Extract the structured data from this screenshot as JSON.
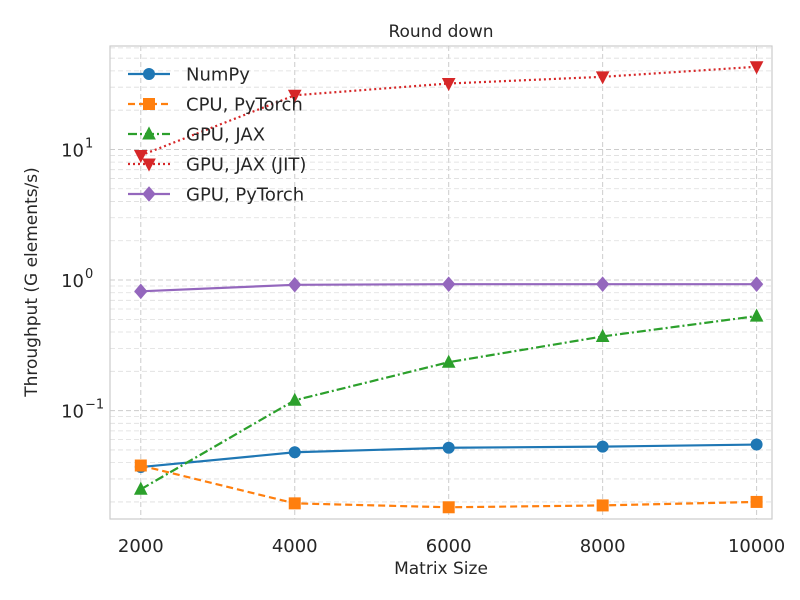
{
  "chart_data": {
    "type": "line",
    "title": "Round down",
    "xlabel": "Matrix Size",
    "ylabel": "Throughput (G elements/s)",
    "yscale": "log",
    "xlim": [
      1600,
      10200
    ],
    "ylim": [
      0.0148,
      62
    ],
    "x": [
      2000,
      4000,
      6000,
      8000,
      10000
    ],
    "x_ticks": [
      2000,
      4000,
      6000,
      8000,
      10000
    ],
    "x_tick_labels": [
      "2000",
      "4000",
      "6000",
      "8000",
      "10000"
    ],
    "y_ticks": [
      0.1,
      1,
      10
    ],
    "y_tick_labels": [
      {
        "base": "10",
        "exp": "−1"
      },
      {
        "base": "10",
        "exp": "0"
      },
      {
        "base": "10",
        "exp": "1"
      }
    ],
    "grid": true,
    "legend_position": "top-left",
    "series": [
      {
        "name": "NumPy",
        "values": [
          0.037,
          0.048,
          0.052,
          0.053,
          0.055
        ],
        "color": "#1f77b4",
        "marker": "circle",
        "linestyle": "solid"
      },
      {
        "name": "CPU, PyTorch",
        "values": [
          0.038,
          0.0195,
          0.0182,
          0.0188,
          0.02
        ],
        "color": "#ff7f0e",
        "marker": "square",
        "linestyle": "dashed"
      },
      {
        "name": "GPU, JAX",
        "values": [
          0.025,
          0.12,
          0.235,
          0.37,
          0.53
        ],
        "color": "#2ca02c",
        "marker": "triangle-up",
        "linestyle": "dashdot"
      },
      {
        "name": "GPU, JAX (JIT)",
        "values": [
          9.0,
          26.0,
          32.0,
          36.0,
          43.0
        ],
        "color": "#d62728",
        "marker": "triangle-down",
        "linestyle": "dotted"
      },
      {
        "name": "GPU, PyTorch",
        "values": [
          0.82,
          0.92,
          0.93,
          0.93,
          0.93
        ],
        "color": "#9467bd",
        "marker": "diamond",
        "linestyle": "solid"
      }
    ]
  }
}
